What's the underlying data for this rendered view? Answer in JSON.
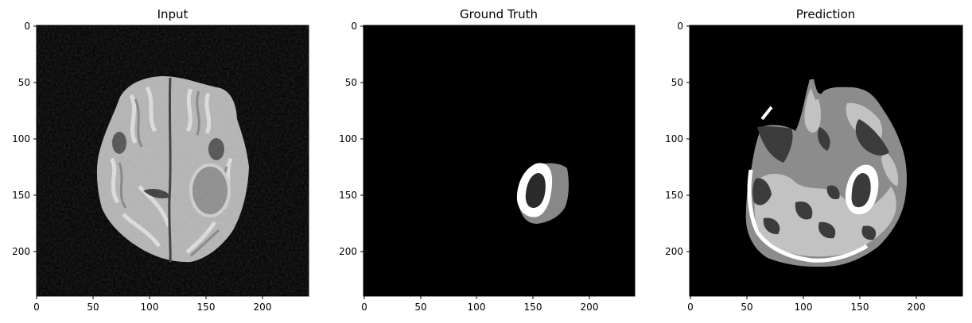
{
  "figure": {
    "panels": [
      {
        "key": "input",
        "title": "Input",
        "xticks": [
          "0",
          "50",
          "100",
          "150",
          "200"
        ],
        "yticks": [
          "0",
          "50",
          "100",
          "150",
          "200"
        ]
      },
      {
        "key": "ground_truth",
        "title": "Ground Truth",
        "xticks": [
          "0",
          "50",
          "100",
          "150",
          "200"
        ],
        "yticks": [
          "0",
          "50",
          "100",
          "150",
          "200"
        ]
      },
      {
        "key": "prediction",
        "title": "Prediction",
        "xticks": [
          "0",
          "50",
          "100",
          "150",
          "200"
        ],
        "yticks": [
          "0",
          "50",
          "100",
          "150",
          "200"
        ]
      }
    ],
    "axis_range": [
      0,
      240
    ],
    "tick_values": [
      0,
      50,
      100,
      150,
      200
    ],
    "colors": {
      "background": "#000000",
      "brain_light": "#c8c8c8",
      "brain_mid": "#8a8a8a",
      "brain_dark": "#4a4a4a",
      "label_white": "#ffffff",
      "label_gray": "#888888",
      "label_light": "#bdbdbd",
      "label_dark": "#3c3c3c"
    }
  }
}
